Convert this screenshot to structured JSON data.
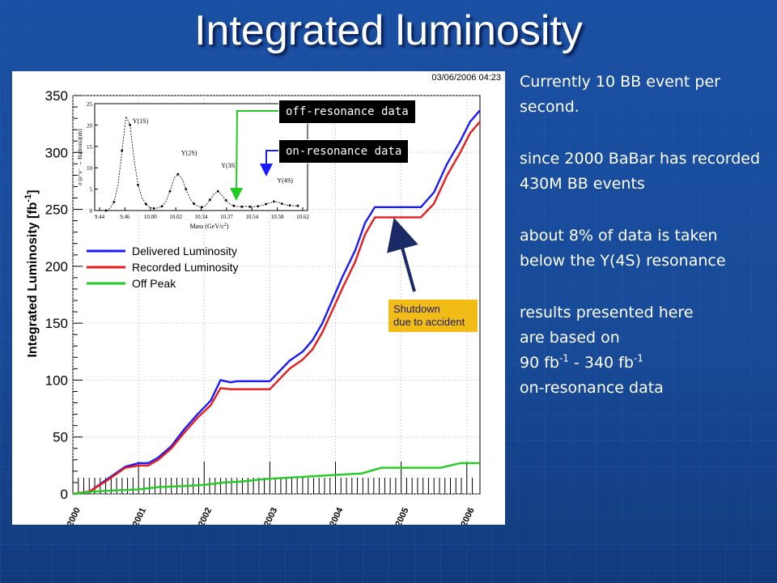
{
  "slide": {
    "title": "Integrated luminosity",
    "colors": {
      "background": "#1a4fa0",
      "title": "#ffffff",
      "text": "#ffffff",
      "callout_bg": "#000000",
      "shutdown_bg": "#f2bc16"
    }
  },
  "annotations": {
    "off_resonance": "off-resonance data",
    "on_resonance": "on-resonance data",
    "shutdown_line1": "Shutdown",
    "shutdown_line2": "due to accident"
  },
  "bullets": {
    "b1": "Currently 10 BB event per second.",
    "b2": "since 2000 BaBar has recorded 430M BB events",
    "b3": "about 8% of data is taken below the Υ(4S) resonance",
    "b4_l1": "results presented here",
    "b4_l2": "are based on",
    "b4_l3_a": "90 fb",
    "b4_l3_sup1": "-1",
    "b4_l3_b": " - 340 fb",
    "b4_l3_sup2": "-1",
    "b4_l4": "on-resonance data"
  },
  "chart_data": [
    {
      "type": "line",
      "timestamp": "03/06/2006 04:23",
      "ylabel": "Integrated Luminosity [fb",
      "ylabel_sup": "-1",
      "ylabel_end": "]",
      "ylim": [
        0,
        350
      ],
      "yticks": [
        0,
        50,
        100,
        150,
        200,
        250,
        300,
        350
      ],
      "xlim": [
        2000,
        2006.2
      ],
      "xticks": [
        "2000",
        "2001",
        "2002",
        "2003",
        "2004",
        "2005",
        "2006"
      ],
      "grid": true,
      "legend_position": "left-middle",
      "series": [
        {
          "name": "Delivered Luminosity",
          "color": "#1a1aff",
          "x": [
            2000.0,
            2000.25,
            2000.5,
            2000.8,
            2001.0,
            2001.15,
            2001.3,
            2001.5,
            2001.7,
            2001.9,
            2002.1,
            2002.25,
            2002.4,
            2002.5,
            2002.65,
            2002.8,
            2003.0,
            2003.3,
            2003.5,
            2003.65,
            2003.8,
            2003.95,
            2004.1,
            2004.3,
            2004.45,
            2004.6,
            2005.0,
            2005.3,
            2005.5,
            2005.7,
            2005.9,
            2006.05,
            2006.2
          ],
          "y": [
            0,
            2,
            12,
            24,
            27,
            27,
            32,
            42,
            57,
            70,
            82,
            100,
            98,
            99,
            99,
            99,
            99,
            117,
            125,
            135,
            150,
            170,
            190,
            214,
            238,
            252,
            252,
            252,
            265,
            290,
            310,
            327,
            337
          ]
        },
        {
          "name": "Recorded Luminosity",
          "color": "#e81c1c",
          "x": [
            2000.0,
            2000.25,
            2000.5,
            2000.8,
            2001.0,
            2001.15,
            2001.3,
            2001.5,
            2001.7,
            2001.9,
            2002.1,
            2002.25,
            2002.4,
            2002.5,
            2002.65,
            2002.8,
            2003.0,
            2003.3,
            2003.5,
            2003.65,
            2003.8,
            2003.95,
            2004.1,
            2004.3,
            2004.45,
            2004.6,
            2005.0,
            2005.3,
            2005.5,
            2005.7,
            2005.9,
            2006.05,
            2006.2
          ],
          "y": [
            0,
            2,
            11,
            23,
            25,
            25,
            30,
            40,
            54,
            67,
            78,
            93,
            92,
            92,
            92,
            92,
            92,
            110,
            118,
            127,
            142,
            161,
            180,
            204,
            228,
            243,
            243,
            243,
            255,
            280,
            300,
            317,
            327
          ]
        },
        {
          "name": "Off Peak",
          "color": "#22cc22",
          "x": [
            2000.0,
            2000.3,
            2000.6,
            2001.0,
            2001.3,
            2001.7,
            2002.0,
            2002.3,
            2002.6,
            2002.9,
            2003.2,
            2003.5,
            2003.8,
            2004.1,
            2004.4,
            2004.7,
            2005.0,
            2005.3,
            2005.6,
            2005.9,
            2006.2
          ],
          "y": [
            0,
            2,
            3,
            4,
            6,
            7,
            8,
            10,
            11,
            13,
            14,
            15,
            16,
            17,
            18,
            23,
            23,
            23,
            23,
            27,
            27
          ]
        }
      ]
    },
    {
      "type": "line",
      "inset": true,
      "xlabel": "Mass (GeV/c",
      "xlabel_sup": "2",
      "xlabel_end": ")",
      "ylabel": "σ (e⁺e⁻ → Hadrons)(nb)",
      "xticks": [
        "9.44",
        "9.46",
        "10.00",
        "10.02",
        "10.34",
        "10.37",
        "10.54",
        "10.58",
        "10.62"
      ],
      "yticks": [
        0,
        5,
        10,
        15,
        20,
        25
      ],
      "ylim": [
        0,
        25
      ],
      "peak_labels": [
        "Υ(1S)",
        "Υ(2S)",
        "Υ(3S)",
        "Υ(4S)"
      ],
      "series": [
        {
          "values": [
            0,
            0.5,
            2,
            6,
            14,
            22,
            20,
            12,
            6,
            3,
            1.5,
            0.7,
            0.5,
            0.6,
            1.0,
            2.2,
            4.5,
            7.5,
            8.5,
            7.5,
            5,
            2.8,
            1.6,
            1.0,
            0.8,
            1.2,
            2.5,
            3.8,
            4.5,
            3.6,
            2.4,
            1.5,
            1.1,
            0.9,
            0.9,
            1.0,
            0.9,
            0.9,
            1.0,
            1.2,
            1.5,
            1.8,
            2.1,
            2.0,
            1.6,
            1.3,
            1.2,
            1.1,
            1.1
          ]
        }
      ]
    }
  ]
}
